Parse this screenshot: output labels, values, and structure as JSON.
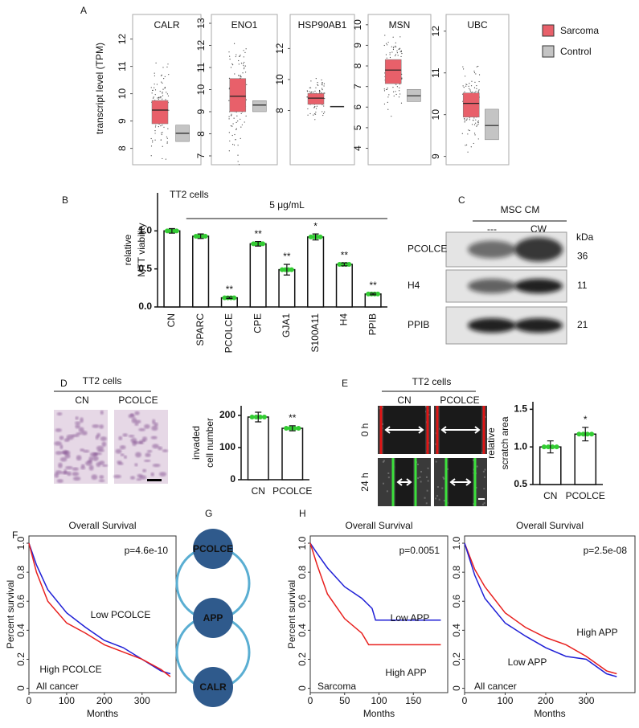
{
  "panel_labels": [
    "A",
    "B",
    "C",
    "D",
    "E",
    "F",
    "G",
    "H"
  ],
  "legend": [
    {
      "name": "Sarcoma",
      "color": "#e8606a"
    },
    {
      "name": "Control",
      "color": "#c4c4c4"
    }
  ],
  "chart_data": [
    {
      "type": "box",
      "title": "CALR",
      "ylabel": "transcript level (TPM)",
      "ylim": [
        7.4,
        12.9
      ],
      "yticks": [
        8,
        9,
        10,
        11,
        12
      ],
      "boxes": [
        {
          "q1": 8.9,
          "median": 9.4,
          "q3": 9.75
        },
        {
          "q1": 8.25,
          "median": 8.55,
          "q3": 8.85
        }
      ]
    },
    {
      "type": "box",
      "title": "ENO1",
      "ylim": [
        6.6,
        13.4
      ],
      "yticks": [
        7,
        8,
        9,
        10,
        11,
        12,
        13
      ],
      "boxes": [
        {
          "q1": 9.0,
          "median": 9.7,
          "q3": 10.5
        },
        {
          "q1": 9.0,
          "median": 9.3,
          "q3": 9.5
        }
      ]
    },
    {
      "type": "box",
      "title": "HSP90AB1",
      "ylim": [
        4.5,
        14.2
      ],
      "yticks": [
        8,
        10,
        12
      ],
      "boxes": [
        {
          "q1": 8.4,
          "median": 8.8,
          "q3": 9.1
        },
        {
          "q1": 8.22,
          "median": 8.25,
          "q3": 8.28
        }
      ]
    },
    {
      "type": "box",
      "title": "MSN",
      "ylim": [
        3.2,
        10.5
      ],
      "yticks": [
        4,
        5,
        6,
        7,
        8,
        9,
        10
      ],
      "boxes": [
        {
          "q1": 7.14,
          "median": 7.8,
          "q3": 8.31
        },
        {
          "q1": 6.27,
          "median": 6.55,
          "q3": 6.86
        }
      ]
    },
    {
      "type": "box",
      "title": "UBC",
      "ylim": [
        8.8,
        12.4
      ],
      "yticks": [
        9,
        10,
        11,
        12
      ],
      "boxes": [
        {
          "q1": 9.94,
          "median": 10.27,
          "q3": 10.52
        },
        {
          "q1": 9.4,
          "median": 9.74,
          "q3": 10.13
        }
      ]
    },
    {
      "type": "bar",
      "title": "TT2 cells",
      "subtitle": "5 μg/mL",
      "ylabel": [
        "relative",
        "MTT viability"
      ],
      "categories": [
        "CN",
        "SPARC",
        "PCOLCE",
        "CPE",
        "GJA1",
        "S100A11",
        "H4",
        "PPIB"
      ],
      "values": [
        1.0,
        0.93,
        0.12,
        0.83,
        0.49,
        0.92,
        0.56,
        0.17
      ],
      "errors": [
        0.03,
        0.03,
        0.01,
        0.03,
        0.07,
        0.04,
        0.02,
        0.01
      ],
      "annotations": [
        null,
        null,
        "**",
        "**",
        "**",
        "*",
        "**",
        "**"
      ],
      "color": "#ffffff",
      "point_color": "#33cc33",
      "rotate_labels": true,
      "ylim": [
        0,
        1.5
      ],
      "yticks": [
        {
          "value": 0,
          "label": "0.0"
        },
        {
          "value": 0.5,
          "label": "0.5"
        },
        {
          "value": 1,
          "label": "1.0"
        }
      ]
    },
    {
      "type": "bar",
      "ylabel": [
        "invaded",
        "cell number"
      ],
      "categories": [
        "CN",
        "PCOLCE"
      ],
      "values": [
        195,
        160
      ],
      "errors": [
        15,
        8
      ],
      "annotations": [
        null,
        "**"
      ],
      "color": "#ffffff",
      "point_color": "#33cc33",
      "rotate_labels": false,
      "ylim": [
        0,
        230
      ],
      "yticks": [
        0,
        100,
        200
      ]
    },
    {
      "type": "bar",
      "ylabel": [
        "relative",
        "scratch area"
      ],
      "categories": [
        "CN",
        "PCOLCE"
      ],
      "values": [
        1.0,
        1.17
      ],
      "errors": [
        0.08,
        0.09
      ],
      "annotations": [
        null,
        "*"
      ],
      "color": "#ffffff",
      "point_color": "#33cc33",
      "rotate_labels": false,
      "ylim": [
        0.5,
        1.6
      ],
      "yticks": [
        {
          "value": 0.5,
          "label": "0.5"
        },
        {
          "value": 1,
          "label": "1.0"
        },
        {
          "value": 1.5,
          "label": "1.5"
        }
      ]
    },
    {
      "type": "line",
      "title": "Overall Survival",
      "xlabel": "Months",
      "ylabel": "Percent survival",
      "pvalue": "p=4.6e-10",
      "cohort": "All cancer",
      "xlim": [
        0,
        390
      ],
      "xticks": [
        0,
        100,
        200,
        300
      ],
      "ylim": [
        -0.03,
        1.05
      ],
      "yticks": [
        0,
        0.2,
        0.4,
        0.6,
        0.8,
        {
          "value": 1,
          "label": "1.0"
        }
      ],
      "series": [
        {
          "name": "Low PCOLCE",
          "color": "#1f1fd6",
          "x": [
            0,
            20,
            50,
            100,
            150,
            200,
            250,
            300,
            350,
            375
          ],
          "values": [
            1,
            0.85,
            0.68,
            0.52,
            0.42,
            0.33,
            0.28,
            0.2,
            0.12,
            0.1
          ]
        },
        {
          "name": "High PCOLCE",
          "color": "#e8201e",
          "x": [
            0,
            20,
            50,
            100,
            150,
            200,
            250,
            300,
            350,
            375
          ],
          "values": [
            1,
            0.8,
            0.6,
            0.45,
            0.38,
            0.3,
            0.25,
            0.2,
            0.13,
            0.08
          ]
        }
      ]
    },
    {
      "type": "line",
      "title": "Overall Survival",
      "xlabel": "Months",
      "ylabel": "Percent survival",
      "pvalue": "p=0.0051",
      "cohort": "Sarcoma",
      "xlim": [
        0,
        200
      ],
      "xticks": [
        0,
        50,
        100,
        150
      ],
      "ylim": [
        -0.03,
        1.05
      ],
      "yticks": [
        0,
        0.2,
        0.4,
        0.6,
        0.8,
        {
          "value": 1,
          "label": "1.0"
        }
      ],
      "series": [
        {
          "name": "Low APP",
          "color": "#1f1fd6",
          "x": [
            0,
            10,
            25,
            50,
            75,
            90,
            95,
            190
          ],
          "values": [
            1,
            0.93,
            0.83,
            0.7,
            0.62,
            0.55,
            0.47,
            0.47
          ]
        },
        {
          "name": "High APP",
          "color": "#e8201e",
          "x": [
            0,
            10,
            25,
            50,
            75,
            85,
            190
          ],
          "values": [
            1,
            0.85,
            0.65,
            0.48,
            0.38,
            0.3,
            0.3
          ]
        }
      ]
    },
    {
      "type": "line",
      "title": "Overall Survival",
      "xlabel": "Months",
      "pvalue": "p=2.5e-08",
      "cohort": "All cancer",
      "xlim": [
        0,
        420
      ],
      "xticks": [
        0,
        100,
        200,
        300
      ],
      "ylim": [
        -0.03,
        1.05
      ],
      "yticks": [
        0,
        0.2,
        0.4,
        0.6,
        0.8,
        {
          "value": 1,
          "label": "1.0"
        }
      ],
      "series": [
        {
          "name": "High APP",
          "color": "#e8201e",
          "x": [
            0,
            25,
            50,
            100,
            150,
            200,
            250,
            300,
            350,
            375
          ],
          "values": [
            1,
            0.82,
            0.7,
            0.52,
            0.42,
            0.35,
            0.3,
            0.22,
            0.12,
            0.1
          ]
        },
        {
          "name": "Low APP",
          "color": "#1f1fd6",
          "x": [
            0,
            25,
            50,
            100,
            150,
            200,
            250,
            300,
            350,
            375
          ],
          "values": [
            1,
            0.78,
            0.62,
            0.45,
            0.36,
            0.28,
            0.22,
            0.2,
            0.1,
            0.08
          ]
        }
      ]
    }
  ],
  "blot": {
    "title": "MSC CM",
    "lanes": [
      "---",
      "CW"
    ],
    "unit": "kDa",
    "rows": [
      {
        "label": "PCOLCE",
        "size": 36
      },
      {
        "label": "H4",
        "size": 11
      },
      {
        "label": "PPIB",
        "size": 21
      }
    ]
  },
  "invasion_images": {
    "title": "TT2 cells",
    "columns": [
      "CN",
      "PCOLCE"
    ]
  },
  "scratch_images": {
    "title": "TT2 cells",
    "columns": [
      "CN",
      "PCOLCE"
    ],
    "rows": [
      "0 h",
      "24 h"
    ]
  },
  "network": {
    "nodes": [
      {
        "label": "PCOLCE",
        "color": "#f5b800"
      },
      {
        "label": "APP",
        "color": "#ffffff"
      },
      {
        "label": "CALR",
        "color": "#e8201e"
      }
    ]
  }
}
